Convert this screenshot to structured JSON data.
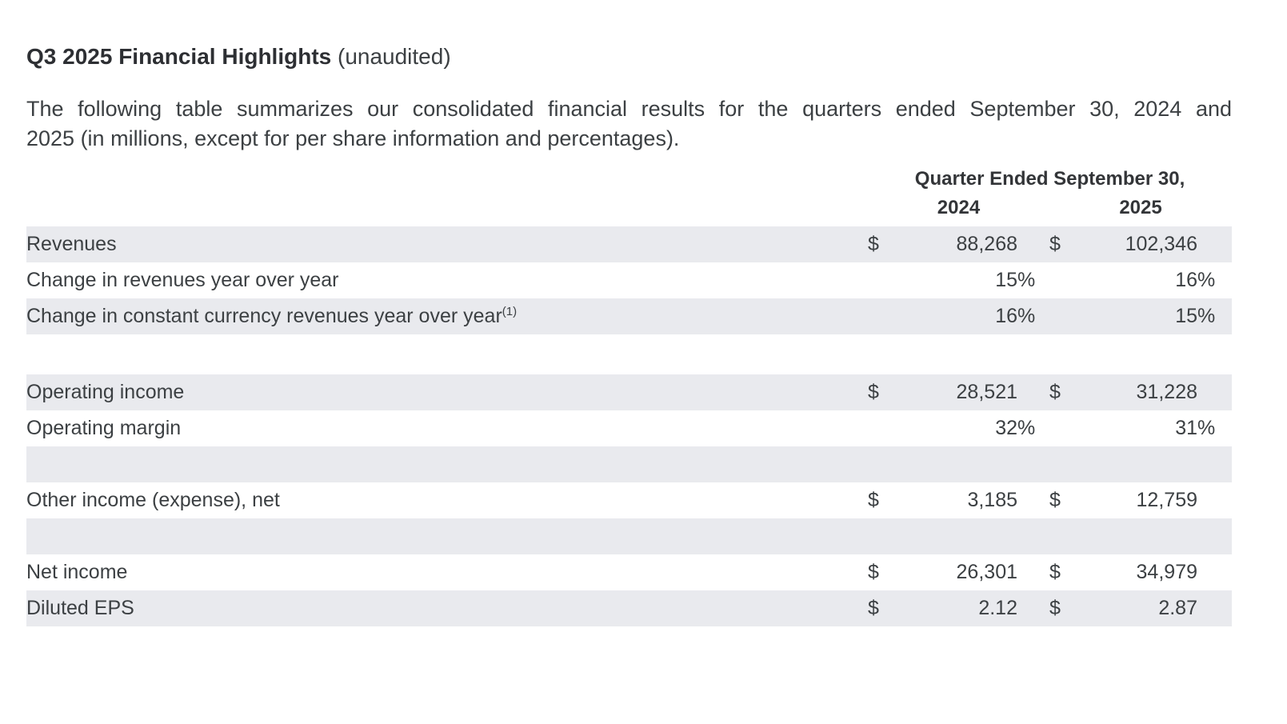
{
  "title": {
    "main": "Q3 2025 Financial Highlights",
    "suffix": " (unaudited)"
  },
  "intro": {
    "line1": "The following table summarizes our consolidated financial results for the quarters ended September 30, 2024 and",
    "line2": "2025 (in millions, except for per share information and percentages)."
  },
  "table": {
    "header": {
      "quarter": "Quarter Ended September 30,",
      "col_2024": "2024",
      "col_2025": "2025"
    },
    "rows": [
      {
        "label": "Revenues",
        "d1": "$",
        "v1": "88,268",
        "p1": "",
        "d2": "$",
        "v2": "102,346",
        "p2": ""
      },
      {
        "label": "Change in revenues year over year",
        "d1": "",
        "v1": "15",
        "p1": "%",
        "d2": "",
        "v2": "16",
        "p2": "%"
      },
      {
        "label": "Change in constant currency revenues year over year",
        "label_sup": "(1)",
        "d1": "",
        "v1": "16",
        "p1": "%",
        "d2": "",
        "v2": "15",
        "p2": "%"
      },
      {
        "label": "Operating income",
        "d1": "$",
        "v1": "28,521",
        "p1": "",
        "d2": "$",
        "v2": "31,228",
        "p2": ""
      },
      {
        "label": "Operating margin",
        "d1": "",
        "v1": "32",
        "p1": "%",
        "d2": "",
        "v2": "31",
        "p2": "%"
      },
      {
        "label": "Other income (expense), net",
        "d1": "$",
        "v1": "3,185",
        "p1": "",
        "d2": "$",
        "v2": "12,759",
        "p2": ""
      },
      {
        "label": "Net income",
        "d1": "$",
        "v1": "26,301",
        "p1": "",
        "d2": "$",
        "v2": "34,979",
        "p2": ""
      },
      {
        "label": "Diluted EPS",
        "d1": "$",
        "v1": "2.12",
        "p1": "",
        "d2": "$",
        "v2": "2.87",
        "p2": ""
      }
    ]
  },
  "colors": {
    "row_shade": "#e9eaee",
    "text": "#3c4043"
  }
}
